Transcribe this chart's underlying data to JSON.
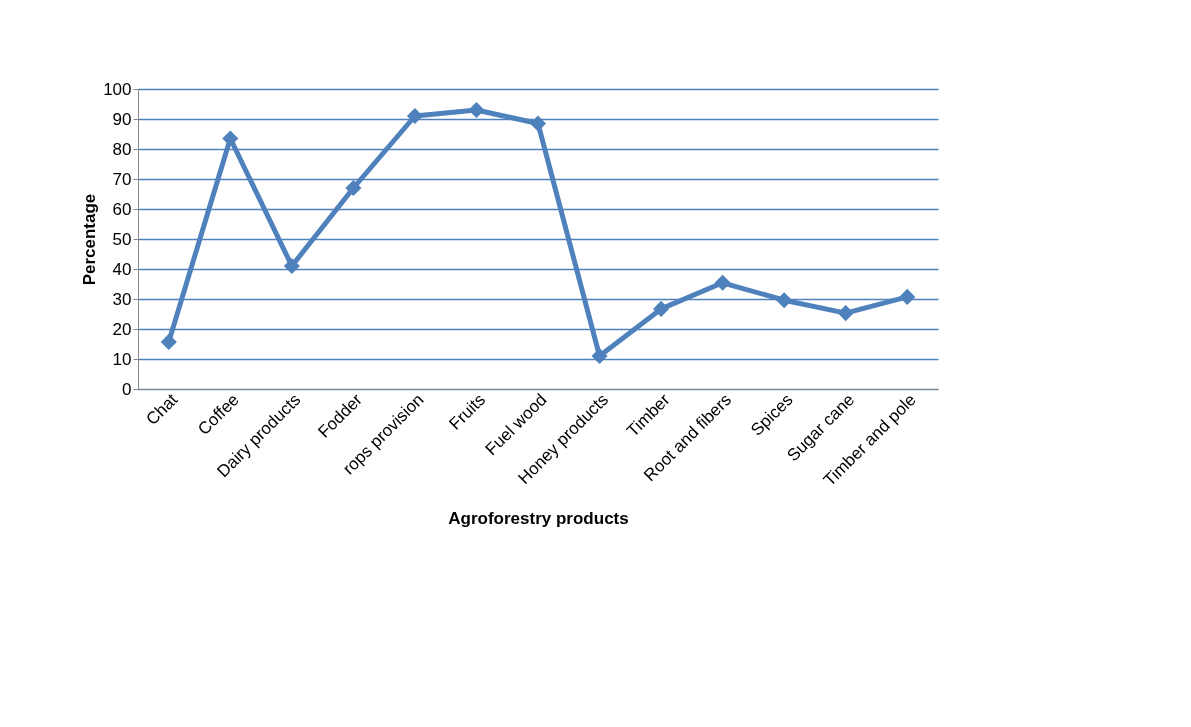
{
  "chart_data": {
    "type": "line",
    "xlabel": "Agroforestry products",
    "ylabel": "Percentage",
    "categories": [
      "Chat",
      "Coffee",
      "Dairy products",
      "Fodder",
      "rops provision",
      "Fruits",
      "Fuel wood",
      "Honey products",
      "Timber",
      "Root and fibers",
      "Spices",
      "Sugar cane",
      "Timber  and pole"
    ],
    "series": [
      {
        "color": "#4f81bd",
        "values": [
          15.7,
          83.5,
          41,
          67,
          91,
          93,
          88.5,
          11,
          26.7,
          35.4,
          29.6,
          25.3,
          30.7
        ]
      }
    ],
    "ylim": [
      0,
      100
    ],
    "yticks": [
      0,
      10,
      20,
      30,
      40,
      50,
      60,
      70,
      80,
      90,
      100
    ],
    "grid": "y",
    "legend": false,
    "marker": "diamond",
    "line_style": "solid"
  }
}
